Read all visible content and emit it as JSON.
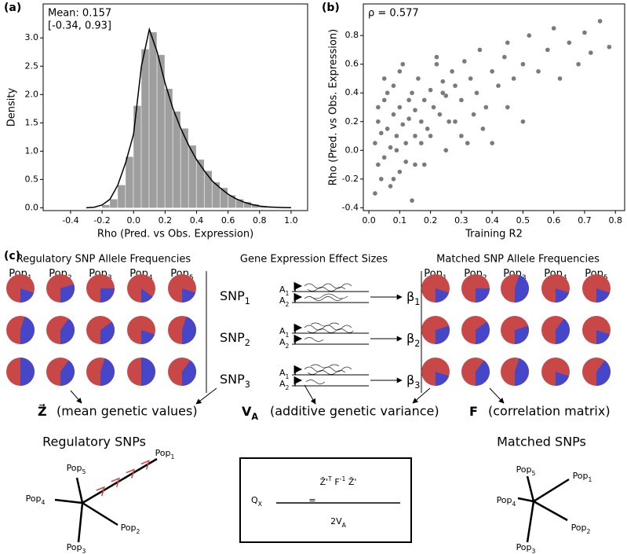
{
  "chart_data": [
    {
      "type": "histogram",
      "panel_label": "(a)",
      "annotations": [
        "Mean: 0.157",
        "[-0.34, 0.93]"
      ],
      "x_label": "Rho (Pred. vs Obs. Expression)",
      "y_label": "Density",
      "bins": [
        -0.2,
        -0.15,
        -0.1,
        -0.05,
        0,
        0.05,
        0.1,
        0.15,
        0.2,
        0.25,
        0.3,
        0.35,
        0.4,
        0.45,
        0.5,
        0.55,
        0.6,
        0.65,
        0.7,
        0.75,
        0.8,
        0.85,
        0.9
      ],
      "values": [
        0.05,
        0.15,
        0.4,
        0.9,
        1.8,
        2.8,
        3.1,
        2.7,
        2.1,
        1.7,
        1.4,
        1.1,
        0.85,
        0.65,
        0.45,
        0.35,
        0.22,
        0.15,
        0.1,
        0.06,
        0.03,
        0.01
      ],
      "color": "#9e9e9e",
      "line_x": [
        -0.3,
        -0.25,
        -0.2,
        -0.15,
        -0.1,
        -0.05,
        0,
        0.05,
        0.1,
        0.15,
        0.2,
        0.25,
        0.3,
        0.35,
        0.4,
        0.45,
        0.5,
        0.55,
        0.6,
        0.65,
        0.7,
        0.75,
        0.8,
        0.85,
        0.9,
        0.95,
        1.0
      ],
      "line_y": [
        0,
        0.01,
        0.05,
        0.15,
        0.4,
        0.8,
        1.3,
        2.5,
        3.15,
        2.75,
        2.2,
        1.75,
        1.4,
        1.1,
        0.85,
        0.65,
        0.47,
        0.35,
        0.24,
        0.16,
        0.1,
        0.06,
        0.03,
        0.015,
        0.008,
        0.004,
        0.002
      ],
      "line_color": "#000000",
      "xlim": [
        -0.574,
        1.105
      ],
      "ylim": [
        -0.05,
        3.6
      ],
      "xticks": [
        -0.4,
        -0.2,
        {
          "value": 0,
          "label": "0.0"
        },
        0.2,
        0.4,
        0.6,
        0.8,
        {
          "value": 1,
          "label": "1.0"
        }
      ],
      "yticks": [
        {
          "value": 0,
          "label": "0.0"
        },
        0.5,
        {
          "value": 1,
          "label": "1.0"
        },
        1.5,
        {
          "value": 2,
          "label": "2.0"
        },
        2.5,
        {
          "value": 3,
          "label": "3.0"
        }
      ]
    },
    {
      "type": "scatter",
      "panel_label": "(b)",
      "annotations": [
        "ρ = 0.577"
      ],
      "x_label": "Training R2",
      "y_label": "Rho (Pred. vs Obs. Expression)",
      "color": "#333333",
      "x": [
        0.02,
        0.03,
        0.03,
        0.04,
        0.05,
        0.05,
        0.06,
        0.07,
        0.08,
        0.08,
        0.09,
        0.1,
        0.1,
        0.11,
        0.12,
        0.13,
        0.14,
        0.15,
        0.15,
        0.16,
        0.17,
        0.18,
        0.19,
        0.2,
        0.21,
        0.22,
        0.23,
        0.24,
        0.25,
        0.26,
        0.27,
        0.28,
        0.3,
        0.31,
        0.33,
        0.35,
        0.36,
        0.38,
        0.4,
        0.42,
        0.44,
        0.45,
        0.47,
        0.5,
        0.52,
        0.55,
        0.58,
        0.6,
        0.62,
        0.65,
        0.68,
        0.7,
        0.72,
        0.75,
        0.78,
        0.03,
        0.04,
        0.06,
        0.07,
        0.09,
        0.1,
        0.12,
        0.13,
        0.15,
        0.17,
        0.2,
        0.22,
        0.25,
        0.28,
        0.3,
        0.34,
        0.37,
        0.4,
        0.45,
        0.5,
        0.02,
        0.05,
        0.08,
        0.11,
        0.14,
        0.18,
        0.24,
        0.32
      ],
      "y": [
        0.05,
        0.2,
        -0.1,
        0.12,
        0.35,
        -0.05,
        0.15,
        0.02,
        0.25,
        0.45,
        0.1,
        0.3,
        -0.15,
        0.18,
        0.05,
        0.22,
        0.4,
        0.28,
        0.1,
        0.5,
        0.2,
        0.35,
        0.15,
        0.42,
        0.3,
        0.6,
        0.25,
        0.48,
        0.38,
        0.2,
        0.55,
        0.45,
        0.35,
        0.62,
        0.5,
        0.4,
        0.7,
        0.3,
        0.55,
        0.45,
        0.65,
        0.75,
        0.5,
        0.6,
        0.8,
        0.55,
        0.7,
        0.85,
        0.5,
        0.75,
        0.6,
        0.82,
        0.68,
        0.9,
        0.72,
        0.3,
        -0.2,
        0.4,
        -0.25,
        0,
        0.55,
        -0.08,
        0.35,
        -0.1,
        0.05,
        0.1,
        0.65,
        0,
        0.2,
        0.1,
        0.25,
        0.15,
        0.05,
        0.3,
        0.2,
        -0.3,
        0.5,
        -0.2,
        0.6,
        -0.35,
        -0.1,
        0.4,
        0.05
      ],
      "xlim": [
        -0.018,
        0.83
      ],
      "ylim": [
        -0.42,
        1.02
      ],
      "xticks": [
        {
          "value": 0,
          "label": "0.0"
        },
        0.1,
        0.2,
        0.3,
        0.4,
        0.5,
        0.6,
        0.7,
        0.8
      ],
      "yticks": [
        -0.4,
        -0.2,
        {
          "value": 0,
          "label": "0.0"
        },
        0.2,
        0.4,
        0.6,
        0.8
      ]
    }
  ],
  "diagram": {
    "panel_label": "(c)",
    "left_title": "Regulatory SNP Allele Frequencies",
    "middle_title": "Gene Expression Effect Sizes",
    "right_title": "Matched SNP Allele Frequencies",
    "pops": [
      {
        "base": "Pop",
        "sub": "1"
      },
      {
        "base": "Pop",
        "sub": "2"
      },
      {
        "base": "Pop",
        "sub": "3"
      },
      {
        "base": "Pop",
        "sub": "4"
      },
      {
        "base": "Pop",
        "sub": "5"
      }
    ],
    "left_blue_fraction": [
      [
        0.2,
        0.3,
        0.25,
        0.15,
        0.2
      ],
      [
        0.45,
        0.4,
        0.35,
        0.2,
        0.45
      ],
      [
        0.5,
        0.4,
        0.45,
        0.5,
        0.4
      ]
    ],
    "right_blue_fraction": [
      [
        0.2,
        0.25,
        0.45,
        0.2,
        0.2
      ],
      [
        0.3,
        0.35,
        0.3,
        0.4,
        0.2
      ],
      [
        0.2,
        0.4,
        0.45,
        0.2,
        0.4
      ]
    ],
    "snps": [
      {
        "base": "SNP",
        "sub": "1"
      },
      {
        "base": "SNP",
        "sub": "2"
      },
      {
        "base": "SNP",
        "sub": "3"
      }
    ],
    "alleles": [
      {
        "base": "A",
        "sub": "1"
      },
      {
        "base": "A",
        "sub": "2"
      }
    ],
    "betas": [
      {
        "base": "β",
        "sub": "1"
      },
      {
        "base": "β",
        "sub": "2"
      },
      {
        "base": "β",
        "sub": "3"
      }
    ],
    "outputs": [
      {
        "symbol": "Z⃗",
        "text": "(mean genetic values)"
      },
      {
        "symbol": "V",
        "sub": "A",
        "text": "(additive genetic variance)"
      },
      {
        "symbol": "F",
        "text": "(correlation matrix)"
      }
    ],
    "tree_titles": [
      "Regulatory SNPs",
      "Matched SNPs"
    ],
    "formula": {
      "lhs": "Q",
      "lhs_sub": "X",
      "eq": "=",
      "numerator": [
        {
          "text": "Z̄'"
        },
        {
          "sup": "T"
        },
        {
          "text": " F"
        },
        {
          "sup": "-1"
        },
        {
          "text": " Z̄'"
        }
      ],
      "den": "2V",
      "den_sub": "A"
    }
  }
}
